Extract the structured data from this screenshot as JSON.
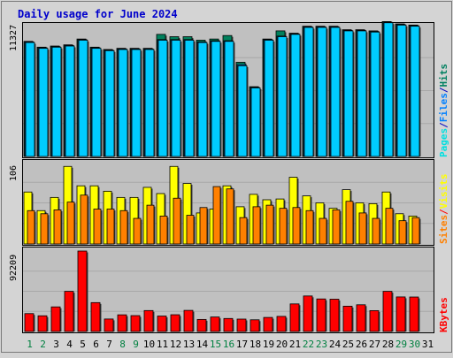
{
  "chart_data": [
    {
      "type": "bar",
      "panel": "hits-files-pages",
      "title": "Daily usage for June 2024",
      "ymax_label": "11327",
      "ymax": 11327,
      "categories": [
        "1",
        "2",
        "3",
        "4",
        "5",
        "6",
        "7",
        "8",
        "9",
        "10",
        "11",
        "12",
        "13",
        "14",
        "15",
        "16",
        "17",
        "18",
        "19",
        "20",
        "21",
        "22",
        "23",
        "24",
        "25",
        "26",
        "27",
        "28",
        "29",
        "30",
        "31"
      ],
      "weekend_days": [
        "1",
        "2",
        "8",
        "9",
        "15",
        "16",
        "22",
        "23",
        "29",
        "30"
      ],
      "legend": [
        {
          "label": "Pages",
          "color": "#00e0e0"
        },
        {
          "label": "/",
          "color": "#0000c0"
        },
        {
          "label": "Files",
          "color": "#0080ff"
        },
        {
          "label": "/",
          "color": "#0000c0"
        },
        {
          "label": "Hits",
          "color": "#008060"
        }
      ],
      "series": [
        {
          "name": "Hits",
          "color": "#00805c",
          "values": [
            9900,
            9400,
            9500,
            9600,
            10100,
            9400,
            9200,
            9300,
            9300,
            9300,
            10500,
            10300,
            10300,
            10000,
            10100,
            10400,
            8100,
            6000,
            10100,
            10800,
            10600,
            11200,
            11200,
            11200,
            10900,
            10900,
            10800,
            11600,
            11400,
            11300,
            0
          ]
        },
        {
          "name": "Files",
          "color": "#0080ff",
          "values": [
            9850,
            9350,
            9450,
            9550,
            10050,
            9350,
            9150,
            9250,
            9250,
            9250,
            10050,
            10050,
            10050,
            9850,
            9950,
            9950,
            7900,
            5950,
            10050,
            10350,
            10550,
            11150,
            11150,
            11150,
            10850,
            10850,
            10750,
            11550,
            11350,
            11250,
            0
          ]
        },
        {
          "name": "Pages",
          "color": "#00ccff",
          "values": [
            9800,
            9300,
            9400,
            9500,
            10000,
            9300,
            9100,
            9200,
            9200,
            9200,
            10000,
            10000,
            10000,
            9800,
            9900,
            9900,
            7800,
            5900,
            10000,
            10300,
            10500,
            11100,
            11100,
            11100,
            10800,
            10800,
            10700,
            11500,
            11300,
            11200,
            0
          ]
        }
      ]
    },
    {
      "type": "bar",
      "panel": "visits-sites",
      "ymax_label": "106",
      "ymax": 106,
      "legend": [
        {
          "label": "Sites",
          "color": "#ff8000"
        },
        {
          "label": "/",
          "color": "#ff0000"
        },
        {
          "label": "Visits",
          "color": "#ffff00"
        }
      ],
      "series": [
        {
          "name": "Visits",
          "color": "#ffff00",
          "values": [
            67,
            43,
            60,
            100,
            75,
            75,
            68,
            60,
            60,
            73,
            65,
            100,
            78,
            40,
            45,
            75,
            48,
            64,
            57,
            58,
            86,
            62,
            53,
            46,
            70,
            53,
            52,
            67,
            39,
            36,
            0
          ]
        },
        {
          "name": "Sites",
          "color": "#ff8000",
          "values": [
            43,
            39,
            44,
            54,
            63,
            45,
            45,
            43,
            33,
            50,
            36,
            59,
            37,
            47,
            74,
            71,
            34,
            48,
            50,
            46,
            47,
            43,
            33,
            44,
            55,
            40,
            33,
            46,
            30,
            34,
            0
          ]
        }
      ]
    },
    {
      "type": "bar",
      "panel": "kbytes",
      "ymax_label": "92209",
      "ymax": 92209,
      "legend": [
        {
          "label": "KBytes",
          "color": "#ff0000"
        }
      ],
      "series": [
        {
          "name": "KBytes",
          "color": "#ff0000",
          "values": [
            20500,
            18000,
            28200,
            46000,
            92209,
            33100,
            14300,
            19100,
            18200,
            24000,
            17700,
            19200,
            24200,
            13800,
            16600,
            14900,
            14200,
            13400,
            16100,
            17300,
            31600,
            40700,
            37300,
            37000,
            29000,
            30600,
            23900,
            46000,
            39600,
            39500,
            0
          ]
        }
      ]
    }
  ]
}
